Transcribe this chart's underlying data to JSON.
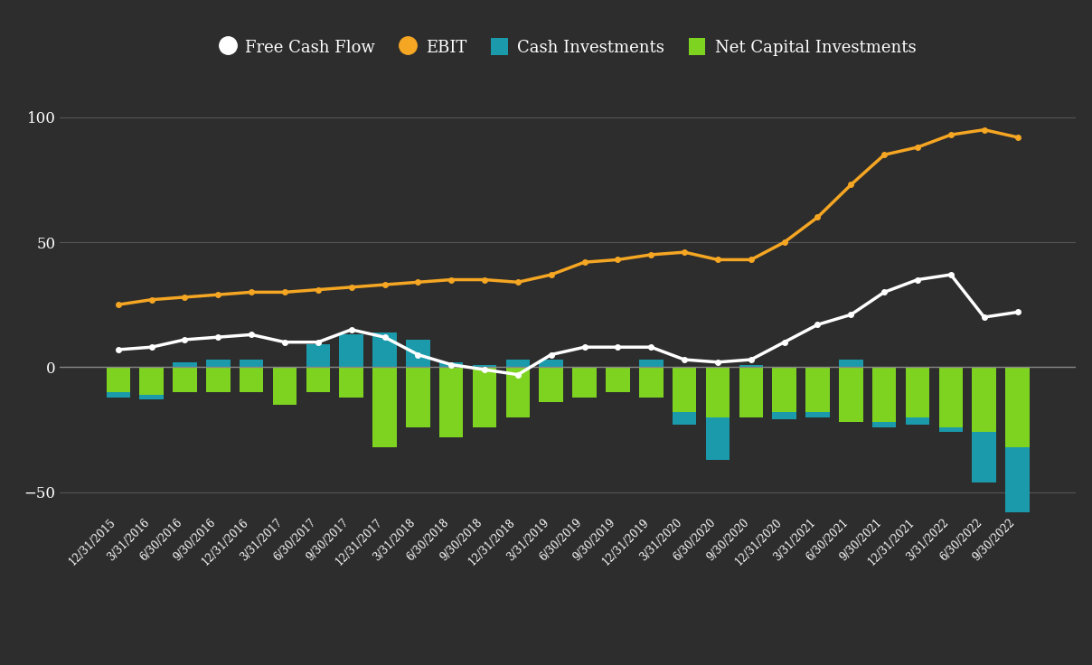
{
  "dates": [
    "12/31/2015",
    "3/31/2016",
    "6/30/2016",
    "9/30/2016",
    "12/31/2016",
    "3/31/2017",
    "6/30/2017",
    "9/30/2017",
    "12/31/2017",
    "3/31/2018",
    "6/30/2018",
    "9/30/2018",
    "12/31/2018",
    "3/31/2019",
    "6/30/2019",
    "9/30/2019",
    "12/31/2019",
    "3/31/2020",
    "6/30/2020",
    "9/30/2020",
    "12/31/2020",
    "3/31/2021",
    "6/30/2021",
    "9/30/2021",
    "12/31/2021",
    "3/31/2022",
    "6/30/2022",
    "9/30/2022"
  ],
  "free_cash_flow": [
    7,
    8,
    11,
    12,
    13,
    10,
    10,
    15,
    12,
    5,
    1,
    -1,
    -3,
    5,
    8,
    8,
    8,
    3,
    2,
    3,
    10,
    17,
    21,
    30,
    35,
    37,
    20,
    22
  ],
  "ebit": [
    25,
    27,
    28,
    29,
    30,
    30,
    31,
    32,
    33,
    34,
    35,
    35,
    34,
    37,
    42,
    43,
    45,
    46,
    43,
    43,
    50,
    60,
    73,
    85,
    88,
    93,
    95,
    92
  ],
  "cash_investments": [
    -2,
    -2,
    2,
    3,
    3,
    0,
    9,
    13,
    14,
    11,
    2,
    1,
    3,
    3,
    0,
    0,
    3,
    -5,
    -17,
    1,
    -3,
    -2,
    3,
    -2,
    -3,
    -2,
    -20,
    -28
  ],
  "net_capital_investments": [
    -10,
    -11,
    -10,
    -10,
    -10,
    -15,
    -10,
    -12,
    -32,
    -24,
    -28,
    -24,
    -20,
    -14,
    -12,
    -10,
    -12,
    -18,
    -20,
    -20,
    -18,
    -18,
    -22,
    -22,
    -20,
    -24,
    -26,
    -32
  ],
  "background_color": "#2d2d2d",
  "grid_color": "#555555",
  "zero_line_color": "#888888",
  "text_color": "#ffffff",
  "fcf_color": "#ffffff",
  "ebit_color": "#f5a623",
  "cash_inv_color": "#1a9aaa",
  "net_cap_inv_color": "#7ed321",
  "ylim": [
    -58,
    115
  ],
  "yticks": [
    -50,
    0,
    50,
    100
  ]
}
